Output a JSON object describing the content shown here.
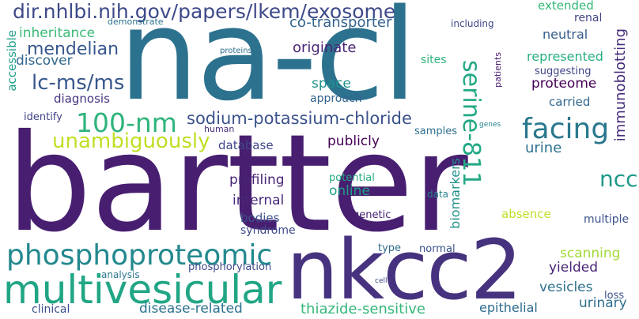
{
  "words": [
    {
      "id": "bartter",
      "text": "bartter",
      "color": "#481f70"
    },
    {
      "id": "na-cl",
      "text": "na-cl",
      "color": "#2c728e"
    },
    {
      "id": "nkcc2",
      "text": "nkcc2",
      "color": "#46327e"
    },
    {
      "id": "multivesicular",
      "text": "multivesicular",
      "color": "#21a685"
    },
    {
      "id": "phosphoproteomic",
      "text": "phosphoproteomic",
      "color": "#23898e"
    },
    {
      "id": "dir-url",
      "text": "dir.nhlbi.nih.gov/papers/lkem/exosome",
      "color": "#3e4a89"
    },
    {
      "id": "100-nm",
      "text": "100-nm",
      "color": "#2fb47c"
    },
    {
      "id": "unambiguously",
      "text": "unambiguously",
      "color": "#c0df25"
    },
    {
      "id": "facing",
      "text": "facing",
      "color": "#2a788e"
    },
    {
      "id": "serine-811",
      "text": "serine-811",
      "color": "#22a884"
    },
    {
      "id": "lc-ms-ms",
      "text": "lc-ms/ms",
      "color": "#38588c"
    },
    {
      "id": "sodium-potassium-chloride",
      "text": "sodium-potassium-chloride",
      "color": "#3b528b"
    },
    {
      "id": "ncc",
      "text": "ncc",
      "color": "#1f9a8a"
    },
    {
      "id": "mendelian",
      "text": "mendelian",
      "color": "#38588c"
    },
    {
      "id": "inheritance",
      "text": "inheritance",
      "color": "#3aba76"
    },
    {
      "id": "discover",
      "text": "discover",
      "color": "#31688e"
    },
    {
      "id": "diagnosis",
      "text": "diagnosis",
      "color": "#463480"
    },
    {
      "id": "originate",
      "text": "originate",
      "color": "#482475"
    },
    {
      "id": "co-transporter",
      "text": "co-transporter",
      "color": "#33638d"
    },
    {
      "id": "space",
      "text": "space",
      "color": "#20928c"
    },
    {
      "id": "approach",
      "text": "approach",
      "color": "#33638d"
    },
    {
      "id": "extended",
      "text": "extended",
      "color": "#35b779"
    },
    {
      "id": "renal",
      "text": "renal",
      "color": "#414487"
    },
    {
      "id": "neutral",
      "text": "neutral",
      "color": "#365c8d"
    },
    {
      "id": "represented",
      "text": "represented",
      "color": "#2ab07f"
    },
    {
      "id": "suggesting",
      "text": "suggesting",
      "color": "#404688"
    },
    {
      "id": "proteome",
      "text": "proteome",
      "color": "#440154"
    },
    {
      "id": "carried",
      "text": "carried",
      "color": "#31688e"
    },
    {
      "id": "immunoblotting",
      "text": "immunoblotting",
      "color": "#472d7b"
    },
    {
      "id": "accessible",
      "text": "accessible",
      "color": "#1f9e89"
    },
    {
      "id": "identify",
      "text": "identify",
      "color": "#414487"
    },
    {
      "id": "database",
      "text": "database",
      "color": "#404688"
    },
    {
      "id": "publicly",
      "text": "publicly",
      "color": "#440154"
    },
    {
      "id": "urine",
      "text": "urine",
      "color": "#2c718e"
    },
    {
      "id": "profiling",
      "text": "profiling",
      "color": "#482576"
    },
    {
      "id": "internal",
      "text": "internal",
      "color": "#482878"
    },
    {
      "id": "online",
      "text": "online",
      "color": "#1f9f88"
    },
    {
      "id": "bodies",
      "text": "bodies",
      "color": "#3b518b"
    },
    {
      "id": "syndrome",
      "text": "syndrome",
      "color": "#3e4989"
    },
    {
      "id": "biomarkers",
      "text": "biomarkers",
      "color": "#21918c"
    },
    {
      "id": "genetic",
      "text": "genetic",
      "color": "#482173"
    },
    {
      "id": "potential",
      "text": "potential",
      "color": "#25ab82"
    },
    {
      "id": "data",
      "text": "data",
      "color": "#26818e"
    },
    {
      "id": "absence",
      "text": "absence",
      "color": "#bddf26"
    },
    {
      "id": "multiple",
      "text": "multiple",
      "color": "#3b528b"
    },
    {
      "id": "scanning",
      "text": "scanning",
      "color": "#a2da37"
    },
    {
      "id": "yielded",
      "text": "yielded",
      "color": "#482475"
    },
    {
      "id": "vesicles",
      "text": "vesicles",
      "color": "#2d708e"
    },
    {
      "id": "urinary",
      "text": "urinary",
      "color": "#2e6f8e"
    },
    {
      "id": "thiazide-sensitive",
      "text": "thiazide-sensitive",
      "color": "#35b779"
    },
    {
      "id": "disease-related",
      "text": "disease-related",
      "color": "#2c728e"
    },
    {
      "id": "epithelial",
      "text": "epithelial",
      "color": "#2e6e8e"
    },
    {
      "id": "clinical",
      "text": "clinical",
      "color": "#3c4f8a"
    },
    {
      "id": "analysis",
      "text": "analysis",
      "color": "#2a788e"
    },
    {
      "id": "phosphorylation",
      "text": "phosphorylation",
      "color": "#3e4a89"
    },
    {
      "id": "type",
      "text": "type",
      "color": "#2f6c8e"
    },
    {
      "id": "normal",
      "text": "normal",
      "color": "#3b528b"
    },
    {
      "id": "loss",
      "text": "loss",
      "color": "#3b518b"
    },
    {
      "id": "cell",
      "text": "cell",
      "color": "#3e4989"
    },
    {
      "id": "patients",
      "text": "patients",
      "color": "#48196b"
    },
    {
      "id": "genes",
      "text": "genes",
      "color": "#26828e"
    },
    {
      "id": "human",
      "text": "human",
      "color": "#472e7c"
    },
    {
      "id": "samples",
      "text": "samples",
      "color": "#2e6e8e"
    },
    {
      "id": "sites",
      "text": "sites",
      "color": "#2fb47c"
    },
    {
      "id": "including",
      "text": "including",
      "color": "#3e4989"
    },
    {
      "id": "demonstrate",
      "text": "demonstrate",
      "color": "#2c728e"
    },
    {
      "id": "proteins",
      "text": "proteins",
      "color": "#2e6f8e"
    }
  ]
}
